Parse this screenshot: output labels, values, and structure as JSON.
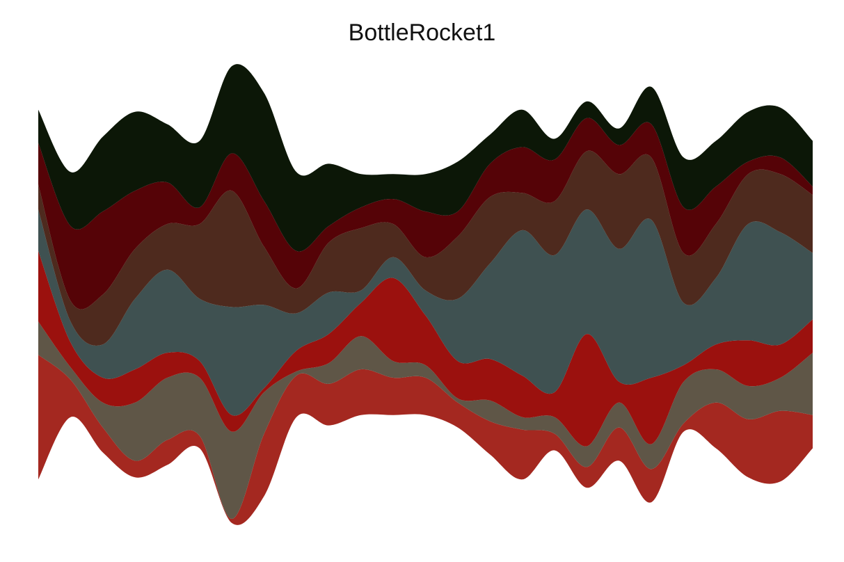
{
  "chart_data": {
    "type": "area",
    "subtype": "streamgraph",
    "title": "BottleRocket1",
    "legend": "none",
    "grid": false,
    "axes_visible": false,
    "x": [
      1,
      2,
      3,
      4,
      5,
      6,
      7,
      8,
      9,
      10,
      11,
      12,
      13,
      14,
      15,
      16,
      17,
      18,
      19,
      20,
      21,
      22,
      23,
      24,
      25
    ],
    "series": [
      {
        "color": "#A42820",
        "values": [
          3,
          0.9,
          0.6,
          0.4,
          0.6,
          0.3,
          0.1,
          1.5,
          1.0,
          1.0,
          1.1,
          0.9,
          0.9,
          0.6,
          0.8,
          1.2,
          0.4,
          0.5,
          0.8,
          0.8,
          0.2,
          1.1,
          1.4,
          1.7,
          0.8
        ]
      },
      {
        "color": "#5F5647",
        "values": [
          0.8,
          0.3,
          0.6,
          1.4,
          1.5,
          1.4,
          2.1,
          1.0,
          0.1,
          0.5,
          0.8,
          0.4,
          0.3,
          0.1,
          0.5,
          0.3,
          0.4,
          0.5,
          0.6,
          0.6,
          1.0,
          0.8,
          0.8,
          0.8,
          1.5
        ]
      },
      {
        "color": "#9B110E",
        "values": [
          1.7,
          0.6,
          0.6,
          0.8,
          0.6,
          0.4,
          0.4,
          0.1,
          0.5,
          0.7,
          0.8,
          2.0,
          1.2,
          0.9,
          1.0,
          1.0,
          0.6,
          2.7,
          0.5,
          1.6,
          0.4,
          0.6,
          1.1,
          0.8,
          0.8
        ]
      },
      {
        "color": "#3F5151",
        "values": [
          1.0,
          0.5,
          0.8,
          1.7,
          2.0,
          1.5,
          2.6,
          2.0,
          0.9,
          1.0,
          0.3,
          0.5,
          0.6,
          1.5,
          2.3,
          3.5,
          3.3,
          3.0,
          3.2,
          3.8,
          1.5,
          1.6,
          2.8,
          2.7,
          1.6
        ]
      },
      {
        "color": "#4E2A1E",
        "values": [
          0.6,
          0.5,
          1.2,
          1.2,
          1.1,
          1.8,
          2.8,
          1.4,
          0.6,
          1.2,
          1.5,
          0.8,
          0.8,
          1.5,
          1.6,
          0.9,
          1.3,
          1.4,
          1.8,
          1.5,
          1.2,
          1.3,
          1.2,
          1.4,
          1.4
        ]
      },
      {
        "color": "#550307",
        "values": [
          1.0,
          1.8,
          2.0,
          1.4,
          1.0,
          0.4,
          0.9,
          1.1,
          0.9,
          0.4,
          0.5,
          0.6,
          1.1,
          0.6,
          0.8,
          1.1,
          1.0,
          0.8,
          0.7,
          0.8,
          1.1,
          0.9,
          0.3,
          0.4,
          0.2
        ]
      },
      {
        "color": "#0C1707",
        "values": [
          0.8,
          1.3,
          1.8,
          1.9,
          1.4,
          1.6,
          2.1,
          2.6,
          1.9,
          1.5,
          0.8,
          0.6,
          0.9,
          1.2,
          0.7,
          0.9,
          0.5,
          0.4,
          0.4,
          0.9,
          1.2,
          1.1,
          1.2,
          1.2,
          1.1
        ]
      }
    ]
  }
}
